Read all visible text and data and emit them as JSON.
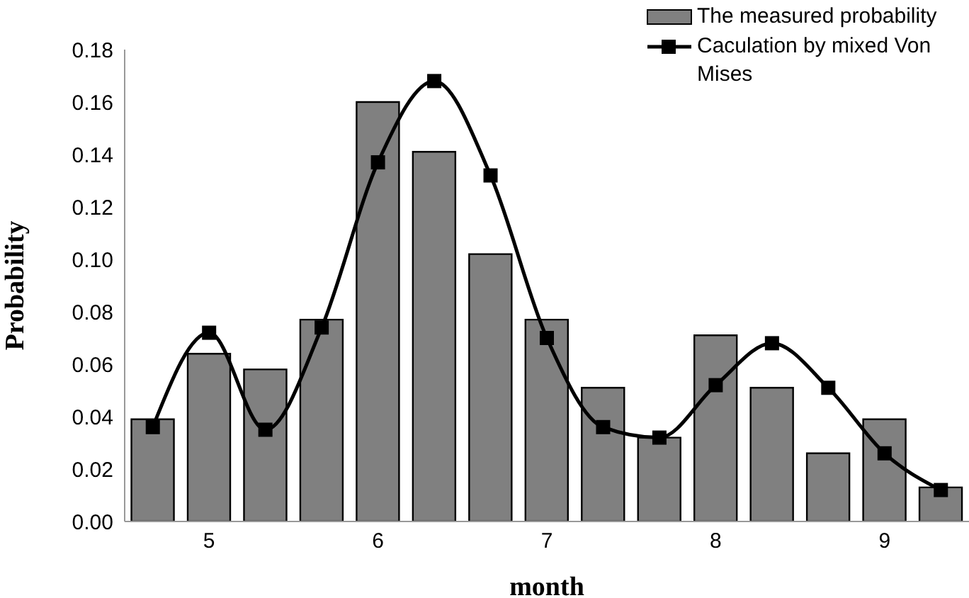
{
  "chart_data": {
    "type": "bar",
    "xlabel": "month",
    "ylabel": "Probability",
    "categories": [
      null,
      "5",
      null,
      null,
      "6",
      null,
      null,
      "7",
      null,
      null,
      "8",
      null,
      null,
      "9",
      null
    ],
    "series": [
      {
        "name": "The measured probability",
        "color": "#808080",
        "values": [
          0.039,
          0.064,
          0.058,
          0.077,
          0.16,
          0.141,
          0.102,
          0.077,
          0.051,
          0.032,
          0.071,
          0.051,
          0.026,
          0.039,
          0.013
        ]
      },
      {
        "name": "Caculation by mixed Von Mises",
        "type": "line",
        "color": "#000000",
        "marker": "square",
        "values": [
          0.036,
          0.072,
          0.035,
          0.074,
          0.137,
          0.168,
          0.132,
          0.07,
          0.036,
          0.032,
          0.052,
          0.068,
          0.051,
          0.026,
          0.012
        ]
      }
    ],
    "ylim": [
      0,
      0.18
    ],
    "yticks": [
      {
        "value": 0,
        "label": "0.00"
      },
      {
        "value": 0.02,
        "label": "0.02"
      },
      {
        "value": 0.04,
        "label": "0.04"
      },
      {
        "value": 0.06,
        "label": "0.06"
      },
      {
        "value": 0.08,
        "label": "0.08"
      },
      {
        "value": 0.1,
        "label": "0.10"
      },
      {
        "value": 0.12,
        "label": "0.12"
      },
      {
        "value": 0.14,
        "label": "0.14"
      },
      {
        "value": 0.16,
        "label": "0.16"
      },
      {
        "value": 0.18,
        "label": "0.18"
      }
    ],
    "grid": false,
    "legend": "top right"
  }
}
